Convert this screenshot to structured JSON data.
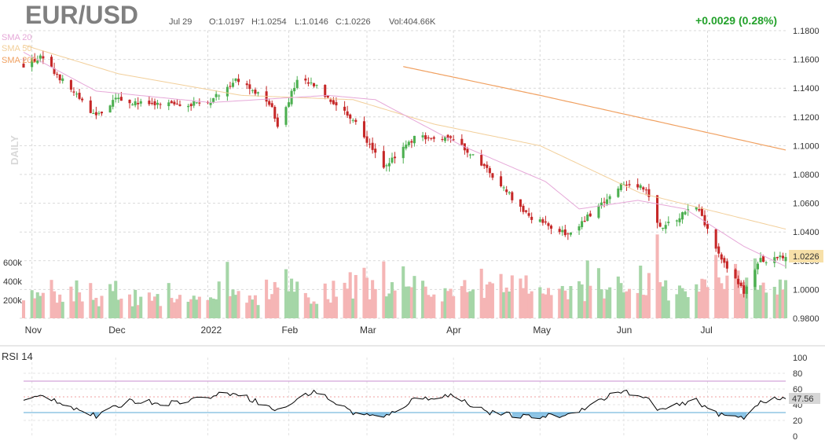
{
  "header": {
    "symbol": "EUR/USD",
    "date": "Jul 29",
    "open": "O:1.0197",
    "high": "H:1.0254",
    "low": "L:1.0146",
    "close": "C:1.0226",
    "volume": "Vol:404.66K",
    "change": "+0.0029 (0.28%)"
  },
  "labels": {
    "daily": "DAILY",
    "sma20": "SMA 20",
    "sma50": "SMA 50",
    "sma200": "SMA 200",
    "rsi": "RSI 14",
    "last_price": "1.0226",
    "last_rsi": "47.56"
  },
  "colors": {
    "up": "#4caf50",
    "down": "#c62828",
    "vol_up": "#a5d6a7",
    "vol_down": "#f5b5b5",
    "sma20": "#e6a8d8",
    "sma50": "#f2cf9a",
    "sma200": "#f0a060",
    "rsi_line": "#000000",
    "rsi_upper": "#c98fd0",
    "rsi_lower": "#5aa9d6",
    "rsi_fill": "#8ec5e6",
    "change": "#23a12b",
    "last_price_bg": "#f7e0a8"
  },
  "chart_data": [
    {
      "type": "candlestick",
      "title": "EUR/USD",
      "period": "DAILY",
      "x_tick_labels": [
        "Nov",
        "Dec",
        "2022",
        "Feb",
        "Mar",
        "Apr",
        "May",
        "Jun",
        "Jul"
      ],
      "y_tick_labels": [
        "1.1800",
        "1.1600",
        "1.1400",
        "1.1200",
        "1.1000",
        "1.0800",
        "1.0600",
        "1.0400",
        "1.0200",
        "1.0000",
        "0.9800"
      ],
      "ylim": [
        0.98,
        1.18
      ],
      "volume_tick_labels": [
        "200k",
        "400k",
        "600k"
      ],
      "last_price": 1.0226,
      "last_bar": {
        "date": "Jul 29",
        "open": 1.0197,
        "high": 1.0254,
        "low": 1.0146,
        "close": 1.0226,
        "volume": "404.66K"
      },
      "close_anchors": [
        [
          "2021-10-29",
          1.156
        ],
        [
          "2021-11-04",
          1.161
        ],
        [
          "2021-11-12",
          1.145
        ],
        [
          "2021-11-24",
          1.12
        ],
        [
          "2021-12-01",
          1.132
        ],
        [
          "2021-12-15",
          1.128
        ],
        [
          "2022-01-03",
          1.13
        ],
        [
          "2022-01-13",
          1.146
        ],
        [
          "2022-01-25",
          1.13
        ],
        [
          "2022-01-28",
          1.115
        ],
        [
          "2022-02-04",
          1.145
        ],
        [
          "2022-02-10",
          1.142
        ],
        [
          "2022-02-24",
          1.119
        ],
        [
          "2022-03-07",
          1.086
        ],
        [
          "2022-03-18",
          1.105
        ],
        [
          "2022-03-31",
          1.107
        ],
        [
          "2022-04-14",
          1.082
        ],
        [
          "2022-04-27",
          1.052
        ],
        [
          "2022-05-12",
          1.038
        ],
        [
          "2022-05-31",
          1.073
        ],
        [
          "2022-06-09",
          1.07
        ],
        [
          "2022-06-14",
          1.042
        ],
        [
          "2022-06-27",
          1.058
        ],
        [
          "2022-07-06",
          1.02
        ],
        [
          "2022-07-14",
          0.998
        ],
        [
          "2022-07-20",
          1.02
        ],
        [
          "2022-07-29",
          1.0226
        ]
      ],
      "sma20_anchors": [
        [
          "2021-10-29",
          1.165
        ],
        [
          "2021-11-24",
          1.138
        ],
        [
          "2022-01-04",
          1.13
        ],
        [
          "2022-02-15",
          1.135
        ],
        [
          "2022-03-04",
          1.132
        ],
        [
          "2022-04-04",
          1.1
        ],
        [
          "2022-05-04",
          1.075
        ],
        [
          "2022-05-16",
          1.056
        ],
        [
          "2022-06-06",
          1.062
        ],
        [
          "2022-06-23",
          1.056
        ],
        [
          "2022-07-14",
          1.03
        ],
        [
          "2022-07-29",
          1.016
        ]
      ],
      "sma50_anchors": [
        [
          "2021-10-29",
          1.17
        ],
        [
          "2021-12-02",
          1.15
        ],
        [
          "2022-01-15",
          1.135
        ],
        [
          "2022-02-24",
          1.132
        ],
        [
          "2022-03-25",
          1.115
        ],
        [
          "2022-05-02",
          1.1
        ],
        [
          "2022-06-07",
          1.067
        ],
        [
          "2022-07-29",
          1.042
        ]
      ],
      "sma200_anchors": [
        [
          "2022-03-14",
          1.155
        ],
        [
          "2022-05-02",
          1.135
        ],
        [
          "2022-06-15",
          1.116
        ],
        [
          "2022-07-29",
          1.097
        ]
      ]
    },
    {
      "type": "line",
      "title": "RSI 14",
      "y_tick_labels": [
        "100",
        "80",
        "60",
        "40",
        "20",
        "0"
      ],
      "ylim": [
        0,
        100
      ],
      "upper_band": 70,
      "lower_band": 30,
      "last_value": 47.56,
      "rsi_anchors": [
        [
          "2021-10-29",
          44
        ],
        [
          "2021-11-05",
          52
        ],
        [
          "2021-11-24",
          25
        ],
        [
          "2021-12-06",
          45
        ],
        [
          "2021-12-20",
          42
        ],
        [
          "2022-01-13",
          56
        ],
        [
          "2022-01-28",
          32
        ],
        [
          "2022-02-10",
          58
        ],
        [
          "2022-02-24",
          30
        ],
        [
          "2022-03-07",
          23
        ],
        [
          "2022-03-18",
          47
        ],
        [
          "2022-03-31",
          52
        ],
        [
          "2022-04-14",
          30
        ],
        [
          "2022-04-28",
          24
        ],
        [
          "2022-05-12",
          27
        ],
        [
          "2022-05-31",
          58
        ],
        [
          "2022-06-10",
          46
        ],
        [
          "2022-06-14",
          33
        ],
        [
          "2022-06-27",
          45
        ],
        [
          "2022-07-06",
          26
        ],
        [
          "2022-07-14",
          24
        ],
        [
          "2022-07-20",
          45
        ],
        [
          "2022-07-29",
          47.56
        ]
      ]
    }
  ]
}
